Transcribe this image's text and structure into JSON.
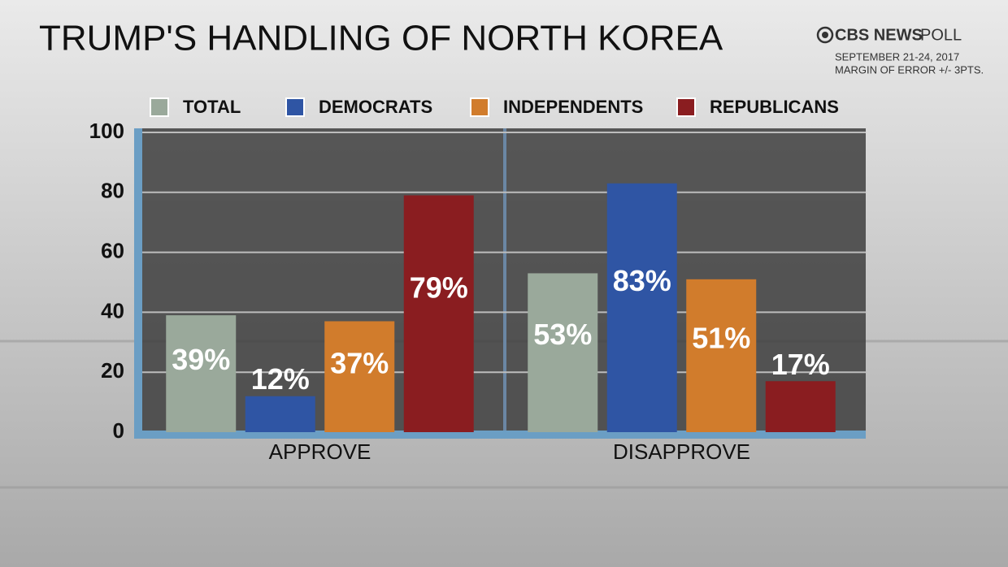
{
  "chart_data": {
    "type": "bar",
    "title": "TRUMP'S HANDLING OF NORTH KOREA",
    "brand": "CBS NEWS",
    "brand_suffix": "POLL",
    "subtitle": [
      "SEPTEMBER 21-24, 2017",
      "MARGIN OF ERROR +/- 3PTS."
    ],
    "categories": [
      "APPROVE",
      "DISAPPROVE"
    ],
    "series": [
      {
        "name": "TOTAL",
        "color": "#9aa99b",
        "values": [
          39,
          53
        ],
        "value_labels": [
          "39%",
          "53%"
        ]
      },
      {
        "name": "DEMOCRATS",
        "color": "#2f55a4",
        "values": [
          12,
          83
        ],
        "value_labels": [
          "12%",
          "83%"
        ]
      },
      {
        "name": "INDEPENDENTS",
        "color": "#d17c2c",
        "values": [
          37,
          51
        ],
        "value_labels": [
          "37%",
          "51%"
        ]
      },
      {
        "name": "REPUBLICANS",
        "color": "#8a1d20",
        "values": [
          79,
          17
        ],
        "value_labels": [
          "79%",
          "17%"
        ]
      }
    ],
    "ylim": [
      0,
      100
    ],
    "yticks": [
      0,
      20,
      40,
      60,
      80,
      100
    ],
    "grid": true
  }
}
